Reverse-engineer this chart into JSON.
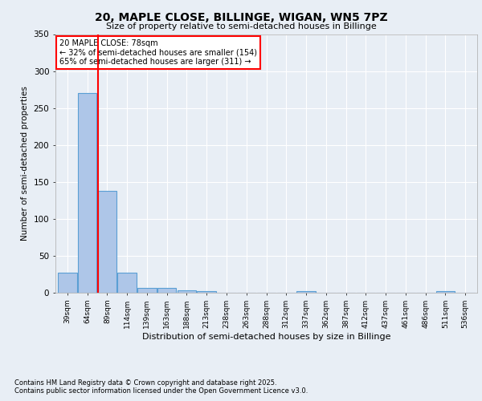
{
  "title_line1": "20, MAPLE CLOSE, BILLINGE, WIGAN, WN5 7PZ",
  "title_line2": "Size of property relative to semi-detached houses in Billinge",
  "xlabel": "Distribution of semi-detached houses by size in Billinge",
  "ylabel": "Number of semi-detached properties",
  "categories": [
    "39sqm",
    "64sqm",
    "89sqm",
    "114sqm",
    "139sqm",
    "163sqm",
    "188sqm",
    "213sqm",
    "238sqm",
    "263sqm",
    "288sqm",
    "312sqm",
    "337sqm",
    "362sqm",
    "387sqm",
    "412sqm",
    "437sqm",
    "461sqm",
    "486sqm",
    "511sqm",
    "536sqm"
  ],
  "values": [
    27,
    270,
    138,
    27,
    7,
    7,
    3,
    2,
    0,
    0,
    0,
    0,
    2,
    0,
    0,
    0,
    0,
    0,
    0,
    2,
    0
  ],
  "bar_color": "#aec6e8",
  "bar_edgecolor": "#5a9fd4",
  "bar_linewidth": 0.8,
  "property_sqm": 78,
  "property_label": "20 MAPLE CLOSE: 78sqm",
  "annotation_smaller": "← 32% of semi-detached houses are smaller (154)",
  "annotation_larger": "65% of semi-detached houses are larger (311) →",
  "annotation_box_color": "red",
  "annotation_fill": "white",
  "vline_color": "red",
  "ylim": [
    0,
    350
  ],
  "yticks": [
    0,
    50,
    100,
    150,
    200,
    250,
    300,
    350
  ],
  "background_color": "#e8eef5",
  "plot_bg_color": "#e8eef5",
  "grid_color": "white",
  "footer1": "Contains HM Land Registry data © Crown copyright and database right 2025.",
  "footer2": "Contains public sector information licensed under the Open Government Licence v3.0."
}
